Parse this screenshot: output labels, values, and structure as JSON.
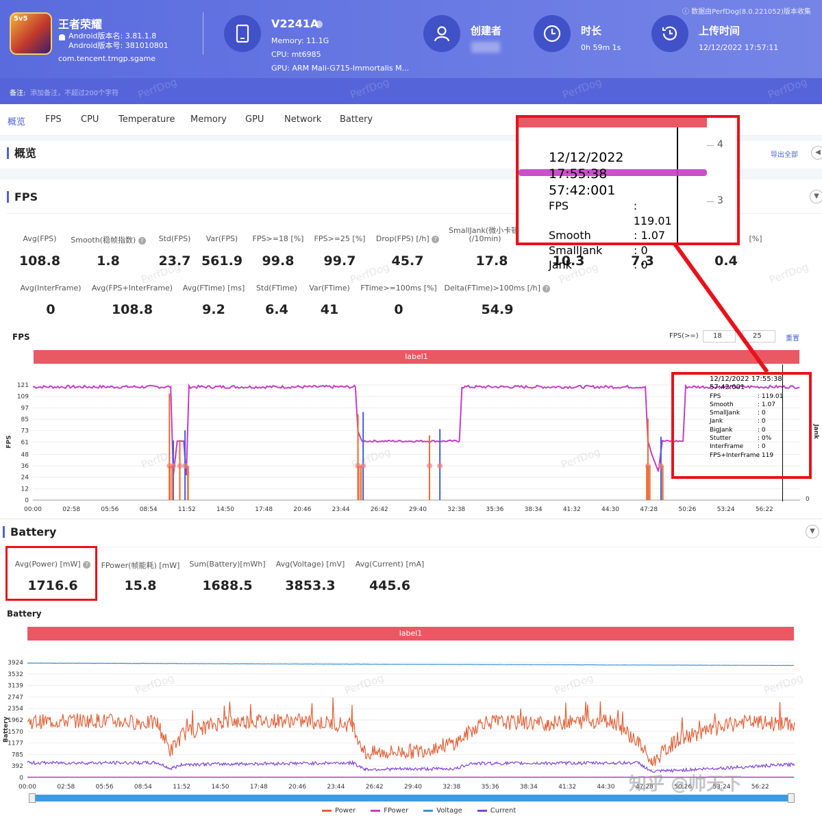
{
  "colors": {
    "accent": "#4a63d4",
    "header": "#5a6bdd",
    "label_bar": "#ea5863",
    "fps": "#c53cc4",
    "jank": "#3e5fd8",
    "bigjank": "#e8692e",
    "power": "#e0623a",
    "fpower": "#c53cc4",
    "voltage": "#3b8fd8",
    "current": "#7d44d8",
    "highlight": "#e8121b"
  },
  "app": {
    "name": "王者荣耀",
    "version_name": "Android版本名: 3.81.1.8",
    "version_code": "Android版本号: 381010801",
    "package": "com.tencent.tmgp.sgame",
    "icon": "game-icon"
  },
  "device": {
    "model": "V2241A",
    "memory": "Memory: 11.1G",
    "cpu": "CPU: mt6985",
    "gpu": "GPU: ARM Mali-G715-Immortalis M...",
    "icon": "phone-icon"
  },
  "creator": {
    "label": "创建者",
    "icon": "person-icon"
  },
  "duration": {
    "label": "时长",
    "value": "0h 59m 1s",
    "icon": "clock-icon"
  },
  "upload": {
    "label": "上传时间",
    "value": "12/12/2022 17:57:11",
    "icon": "history-icon"
  },
  "source_note": "ⓘ 数据由PerfDog(8.0.221052)版本收集",
  "remark": {
    "label": "备注:",
    "placeholder": "添加备注，不超过200个字符"
  },
  "watermark": "PerfDog",
  "tabs": [
    "概览",
    "FPS",
    "CPU",
    "Temperature",
    "Memory",
    "GPU",
    "Network",
    "Battery"
  ],
  "overview": {
    "title": "概览",
    "export": "导出全部"
  },
  "fps": {
    "title": "FPS",
    "row1": [
      {
        "label": "Avg(FPS)",
        "value": "108.8"
      },
      {
        "label": "Smooth(稳帧指数)",
        "value": "1.8",
        "help": true
      },
      {
        "label": "Std(FPS)",
        "value": "23.7"
      },
      {
        "label": "Var(FPS)",
        "value": "561.9"
      },
      {
        "label": "FPS>=18 [%]",
        "value": "99.8"
      },
      {
        "label": "FPS>=25 [%]",
        "value": "99.7"
      },
      {
        "label": "Drop(FPS) [/h]",
        "value": "45.7",
        "help": true
      },
      {
        "label": "SmallJank(微小卡顿)",
        "label2": "(/10min)",
        "value": "17.8"
      },
      {
        "label": "",
        "value": "10.3"
      },
      {
        "label": "",
        "value": "7.3"
      },
      {
        "label": "[%]",
        "value": "0.4"
      }
    ],
    "row2": [
      {
        "label": "Avg(InterFrame)",
        "value": "0"
      },
      {
        "label": "Avg(FPS+InterFrame)",
        "value": "108.8"
      },
      {
        "label": "Avg(FTime) [ms]",
        "value": "9.2"
      },
      {
        "label": "Std(FTime)",
        "value": "6.4"
      },
      {
        "label": "Var(FTime)",
        "value": "41"
      },
      {
        "label": "FTime>=100ms [%]",
        "value": "0"
      },
      {
        "label": "Delta(FTime)>100ms [/h]",
        "value": "54.9",
        "help": true
      }
    ]
  },
  "fps_chart_ctrl": {
    "title": "FPS",
    "threshold_label": "FPS(>=)",
    "t1": "18",
    "t2": "25",
    "reset": "重置",
    "label_bar": "label1",
    "y_title": "FPS",
    "y2_title": "Jank",
    "y2_zero": "0"
  },
  "tooltip_small": {
    "time": "12/12/2022 17:55:38",
    "sub": "57:42:001",
    "rows": [
      [
        "FPS",
        ": 119.01"
      ],
      [
        "Smooth",
        ": 1.07"
      ],
      [
        "SmallJank",
        ": 0"
      ],
      [
        "Jank",
        ": 0"
      ],
      [
        "BigJank",
        ": 0"
      ],
      [
        "Stutter",
        ": 0%"
      ],
      [
        "InterFrame",
        ": 0"
      ],
      [
        "FPS+InterFrame",
        ": 119"
      ]
    ]
  },
  "tooltip_zoom": {
    "time": "12/12/2022 17:55:38",
    "sub": "57:42:001",
    "rows": [
      [
        "FPS",
        ": 119.01"
      ],
      [
        "Smooth",
        ": 1.07"
      ],
      [
        "SmallJank",
        ": 0"
      ],
      [
        "Jank",
        ": 0"
      ]
    ],
    "ticks": [
      "4",
      "3"
    ]
  },
  "battery": {
    "title": "Battery",
    "metrics": [
      {
        "label": "Avg(Power) [mW]",
        "value": "1716.6",
        "help": true
      },
      {
        "label": "FPower(帧能耗) [mW]",
        "value": "15.8"
      },
      {
        "label": "Sum(Battery)[mWh]",
        "value": "1688.5"
      },
      {
        "label": "Avg(Voltage) [mV]",
        "value": "3853.3"
      },
      {
        "label": "Avg(Current) [mA]",
        "value": "445.6"
      }
    ],
    "chart_title": "Battery",
    "label_bar": "label1",
    "y_title": "Battery",
    "legend": [
      "Power",
      "FPower",
      "Voltage",
      "Current"
    ]
  },
  "credit": "知乎 @帅天下",
  "chart_data": [
    {
      "type": "line",
      "title": "FPS",
      "xlabel": "",
      "ylabel": "FPS",
      "y2label": "Jank",
      "ylim": [
        0,
        121
      ],
      "y_ticks": [
        0,
        12,
        24,
        36,
        48,
        61,
        73,
        85,
        97,
        109,
        121
      ],
      "x_ticks": [
        "00:00",
        "02:58",
        "05:56",
        "08:54",
        "11:52",
        "14:50",
        "17:48",
        "20:46",
        "23:44",
        "26:42",
        "29:40",
        "32:38",
        "35:36",
        "38:34",
        "41:32",
        "44:30",
        "47:28",
        "50:26",
        "53:24",
        "56:22"
      ],
      "series": [
        {
          "name": "FPS",
          "x": [
            0,
            10.6,
            10.8,
            11.1,
            11.3,
            11.6,
            11.8,
            12.0,
            24.8,
            25.0,
            25.3,
            32.8,
            33.0,
            47.1,
            47.3,
            47.6,
            48.1,
            48.4,
            50.0,
            50.2,
            59.0
          ],
          "values": [
            119,
            119,
            26,
            62,
            62,
            62,
            26,
            119,
            119,
            72,
            62,
            62,
            119,
            119,
            62,
            48,
            30,
            62,
            62,
            119,
            119
          ]
        },
        {
          "name": "Jank",
          "x": [
            10.5,
            10.8,
            11.3,
            11.7,
            25.0,
            25.4,
            30.5,
            31.3,
            47.3,
            48.3
          ],
          "values": [
            2,
            3,
            2,
            3,
            2,
            3,
            1,
            2,
            2,
            1
          ]
        }
      ]
    },
    {
      "type": "line",
      "title": "Battery",
      "ylabel": "Battery",
      "ylim": [
        0,
        3924
      ],
      "y_ticks": [
        0,
        392,
        785,
        1177,
        1570,
        1962,
        2354,
        2747,
        3139,
        3532,
        3924
      ],
      "x_ticks": [
        "00:00",
        "02:58",
        "05:56",
        "08:54",
        "11:52",
        "14:50",
        "17:48",
        "20:46",
        "23:44",
        "26:42",
        "29:40",
        "32:38",
        "35:36",
        "38:34",
        "41:32",
        "44:30",
        "47:28",
        "50:26",
        "53:24",
        "56:22"
      ],
      "series": [
        {
          "name": "Power",
          "x": [
            0,
            5,
            10,
            11,
            12,
            15,
            20,
            25,
            26,
            27,
            30,
            33,
            35,
            40,
            45,
            47,
            48,
            50,
            55,
            59
          ],
          "values": [
            1900,
            1950,
            1850,
            900,
            1500,
            1900,
            1950,
            1800,
            800,
            850,
            900,
            1200,
            1900,
            1850,
            1950,
            1200,
            500,
            1300,
            1900,
            1800
          ]
        },
        {
          "name": "FPower",
          "x": [
            0,
            59
          ],
          "values": [
            15,
            15
          ]
        },
        {
          "name": "Voltage",
          "x": [
            0,
            59
          ],
          "values": [
            3900,
            3820
          ]
        },
        {
          "name": "Current",
          "x": [
            0,
            10,
            11,
            12,
            25,
            26,
            33,
            34,
            47,
            48,
            59
          ],
          "values": [
            500,
            500,
            300,
            450,
            500,
            280,
            300,
            480,
            500,
            200,
            450
          ]
        }
      ]
    }
  ]
}
